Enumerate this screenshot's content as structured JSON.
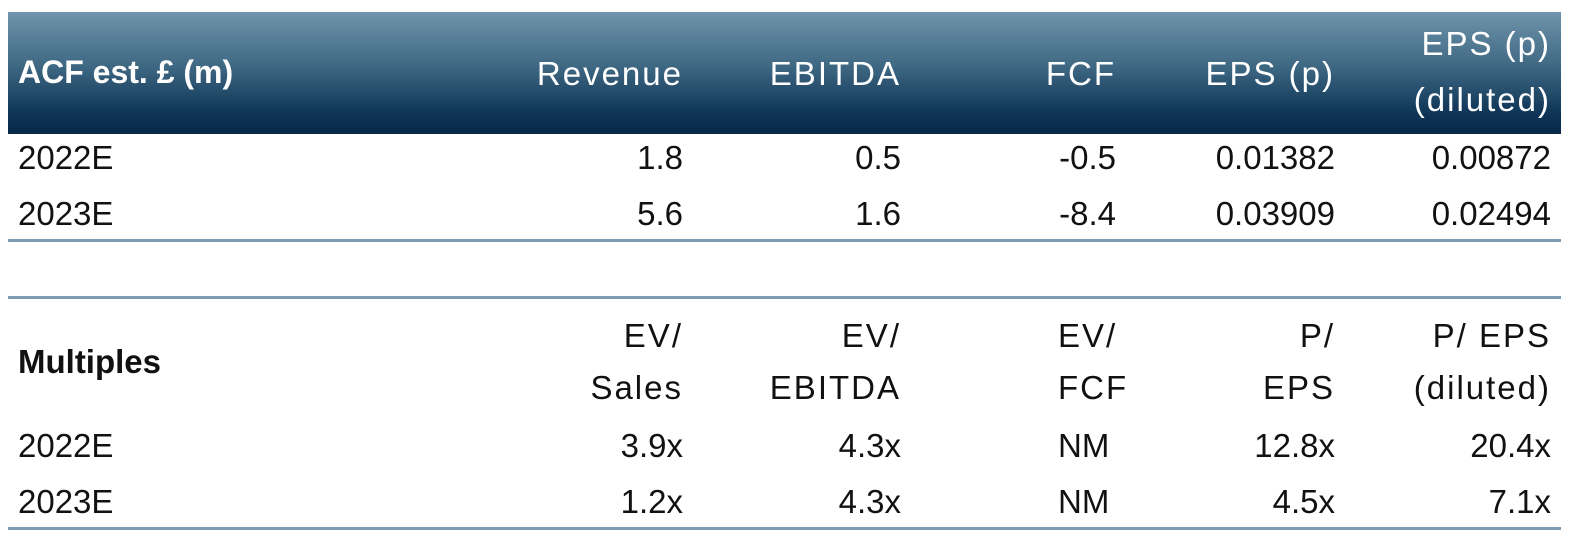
{
  "estimates": {
    "header": {
      "label": "ACF est. £ (m)",
      "revenue": "Revenue",
      "ebitda": "EBITDA",
      "fcf": "FCF",
      "eps": "EPS (p)",
      "eps_diluted_line1": "EPS (p)",
      "eps_diluted_line2": "(diluted)"
    },
    "rows": [
      {
        "year": "2022E",
        "revenue": "1.8",
        "ebitda": "0.5",
        "fcf": "-0.5",
        "eps": "0.01382",
        "eps_diluted": "0.00872"
      },
      {
        "year": "2023E",
        "revenue": "5.6",
        "ebitda": "1.6",
        "fcf": "-8.4",
        "eps": "0.03909",
        "eps_diluted": "0.02494"
      }
    ]
  },
  "multiples": {
    "header": {
      "label": "Multiples",
      "ev_sales_line1": "EV/",
      "ev_sales_line2": "Sales",
      "ev_ebitda_line1": "EV/",
      "ev_ebitda_line2": "EBITDA",
      "ev_fcf_line1": "EV/",
      "ev_fcf_line2": "FCF",
      "p_eps_line1": "P/",
      "p_eps_line2": "EPS",
      "p_eps_diluted_line1": "P/ EPS",
      "p_eps_diluted_line2": "(diluted)"
    },
    "rows": [
      {
        "year": "2022E",
        "ev_sales": "3.9x",
        "ev_ebitda": "4.3x",
        "ev_fcf": "NM",
        "p_eps": "12.8x",
        "p_eps_diluted": "20.4x"
      },
      {
        "year": "2023E",
        "ev_sales": "1.2x",
        "ev_ebitda": "4.3x",
        "ev_fcf": "NM",
        "p_eps": "4.5x",
        "p_eps_diluted": "7.1x"
      }
    ]
  }
}
